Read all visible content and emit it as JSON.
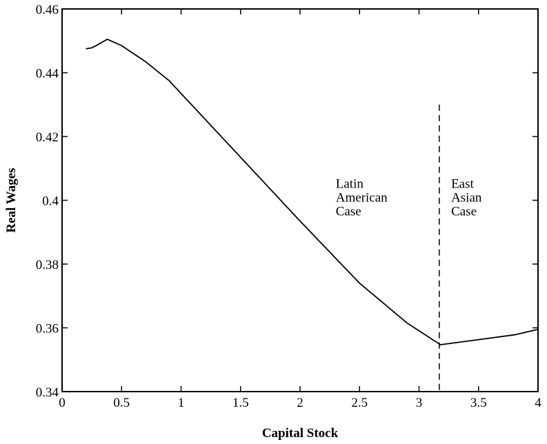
{
  "chart_data": {
    "type": "line",
    "title": "",
    "xlabel": "Capital Stock",
    "ylabel": "Real Wages",
    "xlim": [
      0,
      4
    ],
    "ylim": [
      0.34,
      0.46
    ],
    "xticks": [
      0,
      0.5,
      1,
      1.5,
      2,
      2.5,
      3,
      3.5,
      4
    ],
    "xtick_labels": [
      "0",
      "0.5",
      "1",
      "1.5",
      "2",
      "2.5",
      "3",
      "3.5",
      "4"
    ],
    "yticks": [
      0.34,
      0.36,
      0.38,
      0.4,
      0.42,
      0.44,
      0.46
    ],
    "ytick_labels": [
      "0.34",
      "0.36",
      "0.38",
      "0.4",
      "0.42",
      "0.44",
      "0.46"
    ],
    "grid": false,
    "series": [
      {
        "x": [
          0.2,
          0.25,
          0.3,
          0.38,
          0.5,
          0.7,
          0.9,
          1.0,
          1.5,
          2.0,
          2.5,
          2.9,
          3.18,
          3.5,
          3.8,
          4.0
        ],
        "y": [
          0.4475,
          0.4478,
          0.4488,
          0.4505,
          0.4485,
          0.4435,
          0.4375,
          0.4335,
          0.4135,
          0.3935,
          0.374,
          0.3615,
          0.3547,
          0.3563,
          0.3578,
          0.3595
        ]
      }
    ],
    "vertical_line": {
      "x": 3.17,
      "y_top": 0.43,
      "style": "dashed"
    },
    "annotations": [
      {
        "lines": [
          "Latin",
          "American",
          "Case"
        ],
        "x": 2.3,
        "y": 0.4
      },
      {
        "lines": [
          "East",
          "Asian",
          "Case"
        ],
        "x": 3.27,
        "y": 0.4
      }
    ]
  }
}
